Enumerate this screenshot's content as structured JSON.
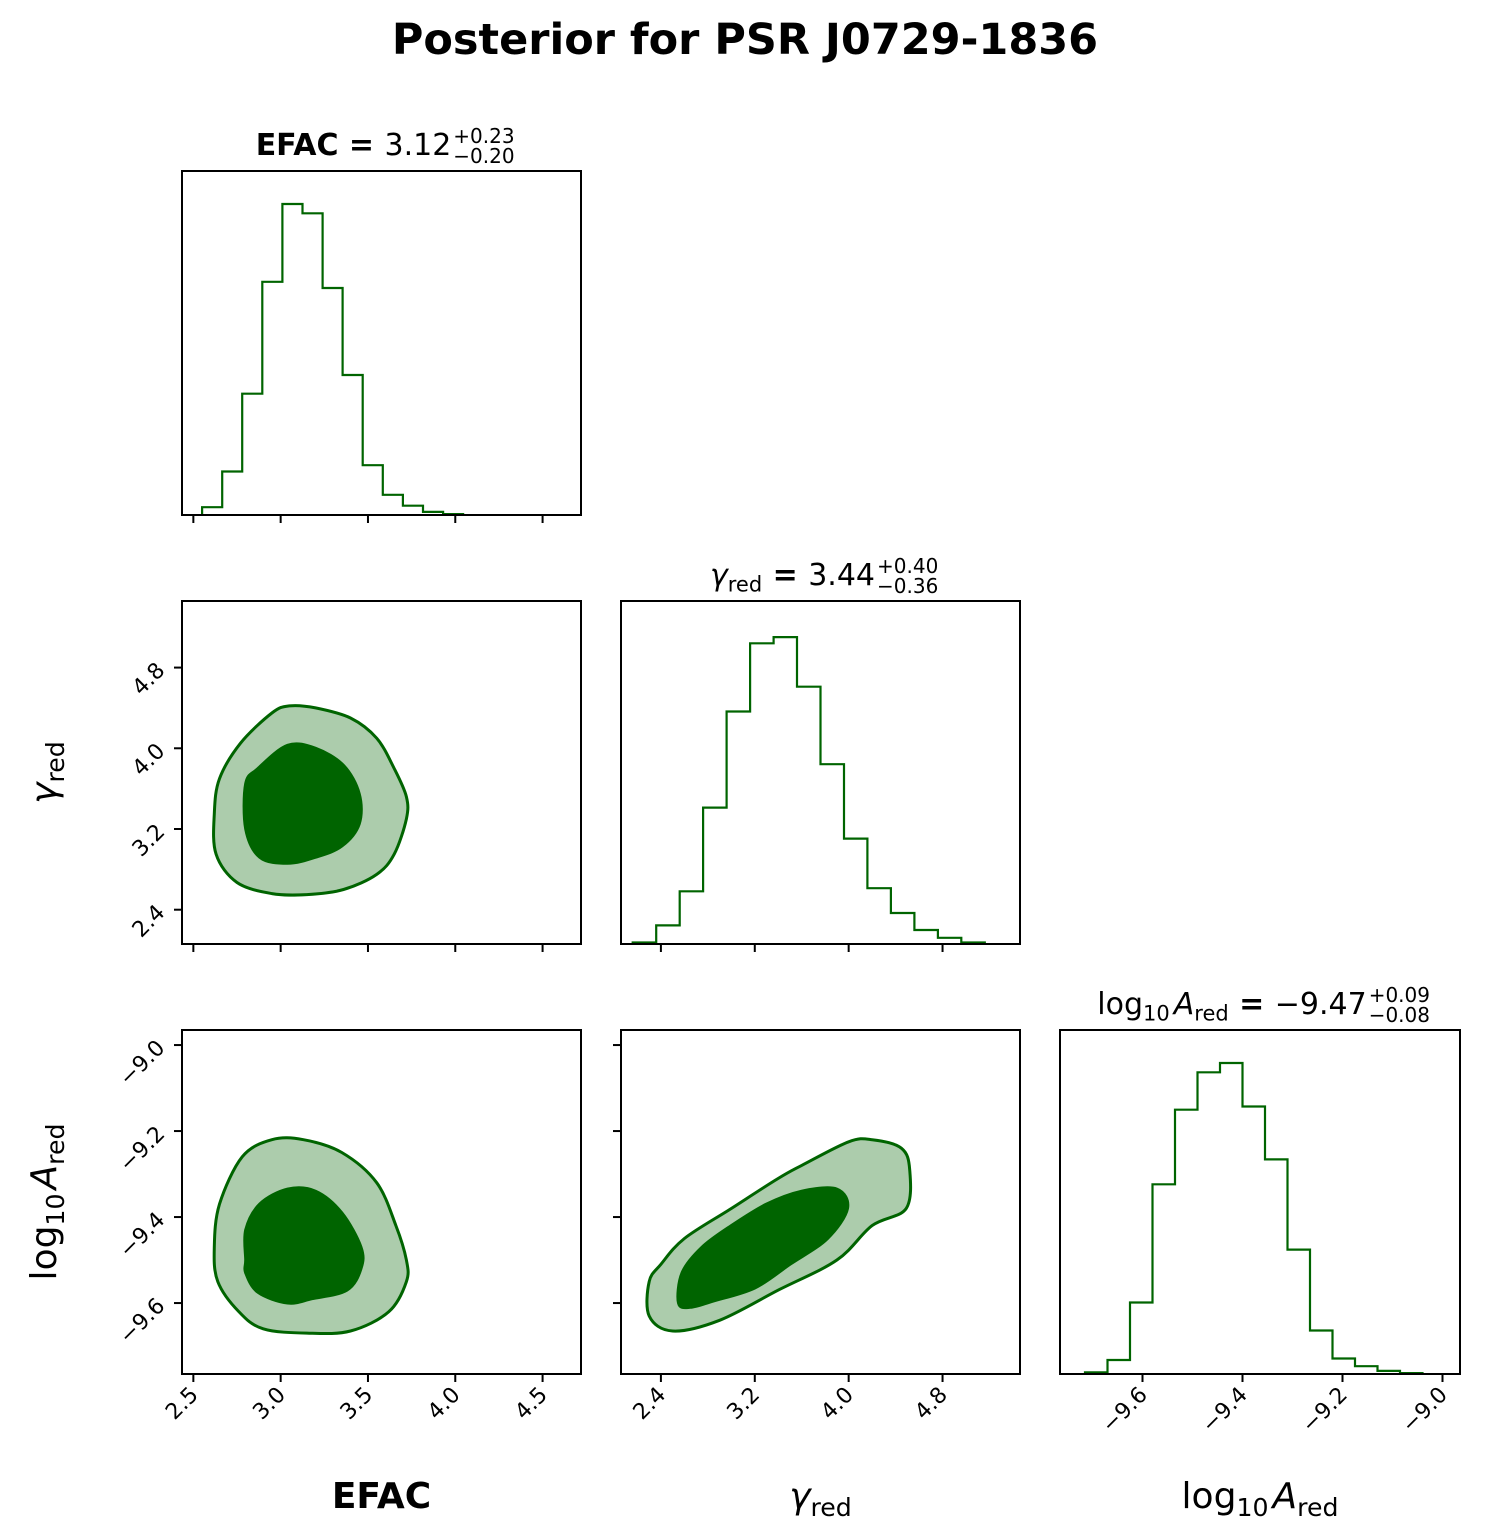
{
  "title": "Posterior for PSR J0729-1836",
  "colors": {
    "line": "#006400",
    "inner_fill": "#006400",
    "outer_fill": "#acccac",
    "axes": "#000000"
  },
  "chart_data": {
    "type": "corner",
    "parameters": [
      {
        "key": "efac",
        "label": "EFAC",
        "median": "3.12",
        "plus": "+0.23",
        "minus": "−0.20",
        "ticks": [
          2.5,
          3.0,
          3.5,
          4.0,
          4.5
        ],
        "tick_labels": [
          "2.5",
          "3.0",
          "3.5",
          "4.0",
          "4.5"
        ],
        "range": [
          2.435,
          4.72
        ]
      },
      {
        "key": "gamma",
        "label": "γ",
        "subscript": "red",
        "median": "3.44",
        "plus": "+0.40",
        "minus": "−0.36",
        "ticks": [
          2.4,
          3.2,
          4.0,
          4.8
        ],
        "tick_labels": [
          "2.4",
          "3.2",
          "4.0",
          "4.8"
        ],
        "range": [
          2.06,
          5.46
        ]
      },
      {
        "key": "log10A",
        "label": "log",
        "label_sub10": "10",
        "label_A": "A",
        "subscript": "red",
        "median": "−9.47",
        "plus": "+0.09",
        "minus": "−0.08",
        "ticks": [
          -9.6,
          -9.4,
          -9.2,
          -9.0
        ],
        "tick_labels": [
          "−9.6",
          "−9.4",
          "−9.2",
          "−9.0"
        ],
        "range": [
          -9.765,
          -8.965
        ]
      }
    ],
    "histograms": {
      "efac": {
        "edges": [
          2.55,
          2.665,
          2.78,
          2.895,
          3.01,
          3.125,
          3.24,
          3.355,
          3.47,
          3.585,
          3.7,
          3.815,
          3.93,
          4.045
        ],
        "counts": [
          0.025,
          0.14,
          0.39,
          0.75,
          1.0,
          0.97,
          0.73,
          0.45,
          0.16,
          0.065,
          0.03,
          0.01,
          0.003
        ]
      },
      "gamma": {
        "edges": [
          2.16,
          2.36,
          2.56,
          2.76,
          2.96,
          3.16,
          3.36,
          3.56,
          3.76,
          3.96,
          4.16,
          4.36,
          4.56,
          4.76,
          4.96,
          5.16
        ],
        "counts": [
          0.005,
          0.06,
          0.17,
          0.44,
          0.75,
          0.97,
          0.99,
          0.83,
          0.58,
          0.34,
          0.18,
          0.1,
          0.045,
          0.02,
          0.005
        ]
      },
      "log10A": {
        "edges": [
          -9.715,
          -9.67,
          -9.625,
          -9.58,
          -9.535,
          -9.49,
          -9.445,
          -9.4,
          -9.355,
          -9.31,
          -9.265,
          -9.22,
          -9.175,
          -9.13,
          -9.085,
          -9.04
        ],
        "counts": [
          0.005,
          0.045,
          0.23,
          0.61,
          0.85,
          0.97,
          1.0,
          0.86,
          0.69,
          0.4,
          0.14,
          0.05,
          0.025,
          0.01,
          0.003
        ]
      }
    },
    "contours": {
      "gamma_vs_efac": {
        "outer": [
          [
            2.62,
            3.35
          ],
          [
            2.65,
            3.7
          ],
          [
            2.77,
            4.05
          ],
          [
            2.95,
            4.35
          ],
          [
            3.05,
            4.42
          ],
          [
            3.2,
            4.4
          ],
          [
            3.4,
            4.3
          ],
          [
            3.55,
            4.1
          ],
          [
            3.65,
            3.8
          ],
          [
            3.72,
            3.52
          ],
          [
            3.72,
            3.3
          ],
          [
            3.65,
            2.95
          ],
          [
            3.55,
            2.75
          ],
          [
            3.36,
            2.6
          ],
          [
            3.15,
            2.55
          ],
          [
            2.95,
            2.56
          ],
          [
            2.75,
            2.67
          ],
          [
            2.63,
            2.95
          ]
        ],
        "inner": [
          [
            2.8,
            3.2
          ],
          [
            2.8,
            3.65
          ],
          [
            2.87,
            3.8
          ],
          [
            3.04,
            4.03
          ],
          [
            3.2,
            4.0
          ],
          [
            3.36,
            3.83
          ],
          [
            3.45,
            3.55
          ],
          [
            3.45,
            3.25
          ],
          [
            3.35,
            3.03
          ],
          [
            3.2,
            2.92
          ],
          [
            3.04,
            2.86
          ],
          [
            2.88,
            2.92
          ]
        ]
      },
      "log10A_vs_efac": {
        "outer": [
          [
            2.62,
            -9.47
          ],
          [
            2.65,
            -9.37
          ],
          [
            2.78,
            -9.26
          ],
          [
            2.95,
            -9.22
          ],
          [
            3.13,
            -9.22
          ],
          [
            3.35,
            -9.25
          ],
          [
            3.55,
            -9.32
          ],
          [
            3.66,
            -9.42
          ],
          [
            3.72,
            -9.5
          ],
          [
            3.72,
            -9.55
          ],
          [
            3.62,
            -9.62
          ],
          [
            3.4,
            -9.665
          ],
          [
            3.15,
            -9.67
          ],
          [
            2.9,
            -9.66
          ],
          [
            2.76,
            -9.62
          ],
          [
            2.64,
            -9.55
          ]
        ],
        "inner": [
          [
            2.8,
            -9.5
          ],
          [
            2.8,
            -9.43
          ],
          [
            2.88,
            -9.37
          ],
          [
            3.04,
            -9.335
          ],
          [
            3.2,
            -9.34
          ],
          [
            3.35,
            -9.39
          ],
          [
            3.46,
            -9.47
          ],
          [
            3.46,
            -9.52
          ],
          [
            3.38,
            -9.57
          ],
          [
            3.18,
            -9.59
          ],
          [
            3.04,
            -9.6
          ],
          [
            2.87,
            -9.575
          ],
          [
            2.8,
            -9.53
          ]
        ]
      },
      "log10A_vs_gamma": {
        "outer": [
          [
            2.3,
            -9.55
          ],
          [
            2.3,
            -9.63
          ],
          [
            2.5,
            -9.665
          ],
          [
            2.9,
            -9.64
          ],
          [
            3.4,
            -9.57
          ],
          [
            3.9,
            -9.5
          ],
          [
            4.2,
            -9.42
          ],
          [
            4.49,
            -9.38
          ],
          [
            4.52,
            -9.29
          ],
          [
            4.45,
            -9.24
          ],
          [
            4.2,
            -9.22
          ],
          [
            4.0,
            -9.225
          ],
          [
            3.6,
            -9.28
          ],
          [
            3.4,
            -9.31
          ],
          [
            3.0,
            -9.38
          ],
          [
            2.6,
            -9.45
          ],
          [
            2.4,
            -9.51
          ]
        ],
        "inner": [
          [
            2.55,
            -9.6
          ],
          [
            2.58,
            -9.53
          ],
          [
            2.75,
            -9.47
          ],
          [
            3.0,
            -9.42
          ],
          [
            3.3,
            -9.37
          ],
          [
            3.6,
            -9.34
          ],
          [
            3.9,
            -9.335
          ],
          [
            3.99,
            -9.38
          ],
          [
            3.82,
            -9.45
          ],
          [
            3.5,
            -9.51
          ],
          [
            3.2,
            -9.565
          ],
          [
            2.85,
            -9.595
          ],
          [
            2.65,
            -9.61
          ]
        ]
      }
    }
  }
}
